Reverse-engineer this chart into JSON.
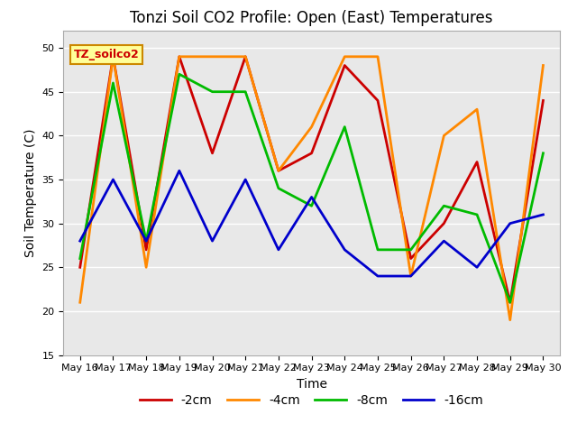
{
  "title": "Tonzi Soil CO2 Profile: Open (East) Temperatures",
  "xlabel": "Time",
  "ylabel": "Soil Temperature (C)",
  "ylim": [
    15,
    52
  ],
  "yticks": [
    15,
    20,
    25,
    30,
    35,
    40,
    45,
    50
  ],
  "x_labels": [
    "May 16",
    "May 17",
    "May 18",
    "May 19",
    "May 20",
    "May 21",
    "May 22",
    "May 23",
    "May 24",
    "May 25",
    "May 26",
    "May 27",
    "May 28",
    "May 29",
    "May 30"
  ],
  "series": {
    "-2cm": {
      "color": "#cc0000",
      "values": [
        25,
        49,
        27,
        49,
        38,
        49,
        36,
        38,
        48,
        44,
        26,
        30,
        37,
        21,
        44
      ]
    },
    "-4cm": {
      "color": "#ff8800",
      "values": [
        21,
        49,
        25,
        49,
        49,
        49,
        36,
        41,
        49,
        49,
        24,
        40,
        43,
        19,
        48
      ]
    },
    "-8cm": {
      "color": "#00bb00",
      "values": [
        26,
        46,
        28,
        47,
        45,
        45,
        34,
        32,
        41,
        27,
        27,
        32,
        31,
        21,
        38
      ]
    },
    "-16cm": {
      "color": "#0000cc",
      "values": [
        28,
        35,
        28,
        36,
        28,
        35,
        27,
        33,
        27,
        24,
        24,
        28,
        25,
        30,
        31
      ]
    }
  },
  "legend_label": "TZ_soilco2",
  "legend_box_facecolor": "#ffff99",
  "legend_box_edgecolor": "#cc8800",
  "legend_text_color": "#cc0000",
  "fig_facecolor": "#ffffff",
  "ax_facecolor": "#e8e8e8",
  "grid_color": "#ffffff",
  "title_fontsize": 12,
  "axis_label_fontsize": 10,
  "tick_fontsize": 8,
  "linewidth": 2.0
}
